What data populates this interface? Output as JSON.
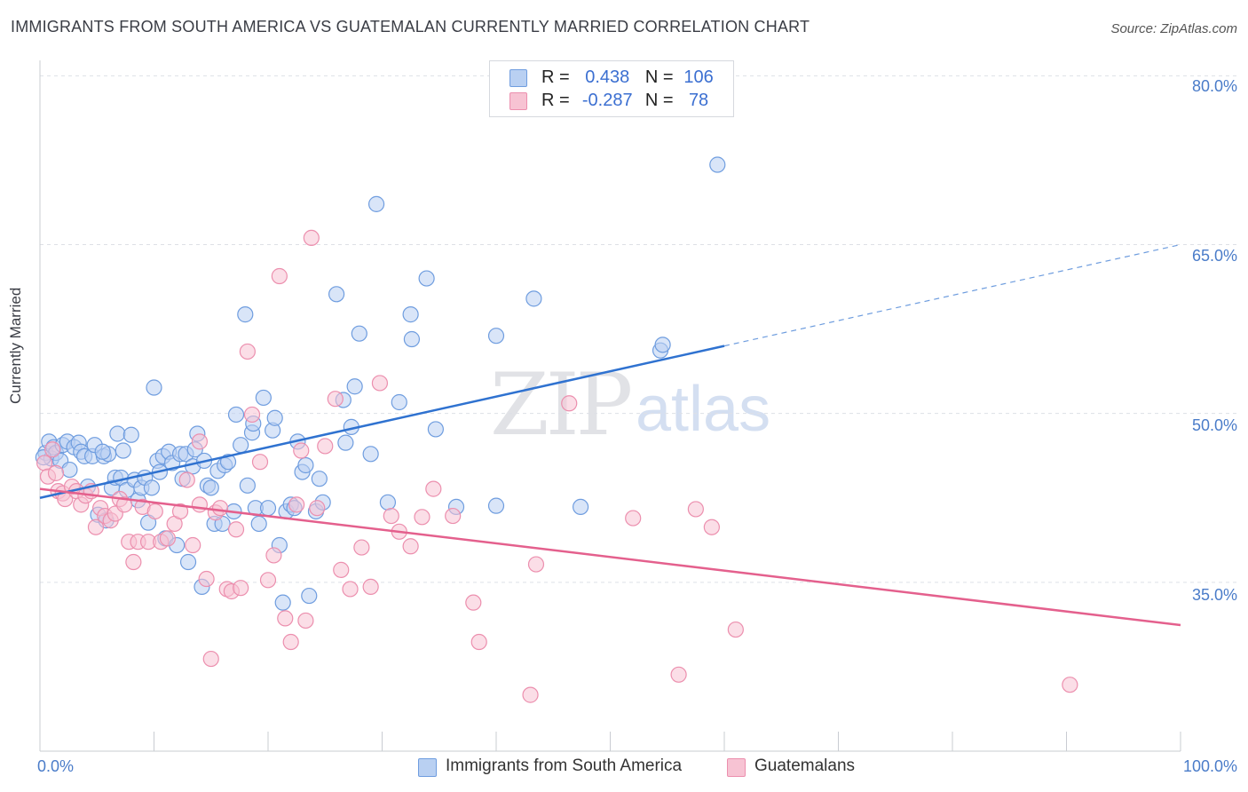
{
  "header": {
    "title": "IMMIGRANTS FROM SOUTH AMERICA VS GUATEMALAN CURRENTLY MARRIED CORRELATION CHART",
    "source": "Source: ZipAtlas.com"
  },
  "watermark": {
    "zip": "ZIP",
    "atlas": "atlas"
  },
  "legend_top": {
    "rows": [
      {
        "r_label": "R =",
        "r_value": "0.438",
        "n_label": "N =",
        "n_value": "106"
      },
      {
        "r_label": "R =",
        "r_value": "-0.287",
        "n_label": "N =",
        "n_value": "78"
      }
    ]
  },
  "legend_bottom": {
    "items": [
      {
        "label": "Immigrants from South America"
      },
      {
        "label": "Guatemalans"
      }
    ]
  },
  "colors": {
    "blue_fill": "#b9d0f2",
    "blue_stroke": "#6f9ddf",
    "blue_line": "#2f72d0",
    "pink_fill": "#f7c3d3",
    "pink_stroke": "#ec8fae",
    "pink_line": "#e4608d",
    "grid": "#dde0e6",
    "tick_label": "#4a7cc9"
  },
  "chart_data": {
    "type": "scatter",
    "title": "IMMIGRANTS FROM SOUTH AMERICA VS GUATEMALAN CURRENTLY MARRIED CORRELATION CHART",
    "xlabel": "",
    "ylabel": "Currently Married",
    "xlim": [
      0,
      100
    ],
    "ylim": [
      20,
      82
    ],
    "x_tick_labels": [
      "0.0%",
      "100.0%"
    ],
    "y_ticks": [
      35,
      50,
      65,
      80
    ],
    "y_tick_labels": [
      "35.0%",
      "50.0%",
      "65.0%",
      "80.0%"
    ],
    "grid": true,
    "legend_position": "top-center",
    "series": [
      {
        "name": "Immigrants from South America",
        "R": 0.438,
        "N": 106,
        "trend": {
          "x": [
            0,
            60
          ],
          "y": [
            42.5,
            56
          ],
          "dashed_extension": {
            "x": [
              60,
              100
            ],
            "y": [
              56,
              65
            ]
          }
        },
        "points": [
          [
            0.5,
            46.5
          ],
          [
            0.8,
            47.5
          ],
          [
            1.0,
            46
          ],
          [
            1.2,
            47
          ],
          [
            1.4,
            46.5
          ],
          [
            1.8,
            45.8
          ],
          [
            2.0,
            47.2
          ],
          [
            2.4,
            47.5
          ],
          [
            2.6,
            45
          ],
          [
            3.0,
            47
          ],
          [
            3.4,
            47.4
          ],
          [
            3.6,
            46.6
          ],
          [
            3.9,
            46.2
          ],
          [
            4.2,
            43.5
          ],
          [
            4.6,
            46.2
          ],
          [
            4.8,
            47.2
          ],
          [
            5.1,
            41
          ],
          [
            5.6,
            46.2
          ],
          [
            5.8,
            40.5
          ],
          [
            6.0,
            46.4
          ],
          [
            6.3,
            43.4
          ],
          [
            6.6,
            44.3
          ],
          [
            6.8,
            48.2
          ],
          [
            7.1,
            44.3
          ],
          [
            7.3,
            46.7
          ],
          [
            7.6,
            43.2
          ],
          [
            8.0,
            48.1
          ],
          [
            8.3,
            44.1
          ],
          [
            8.6,
            42.3
          ],
          [
            8.9,
            43.4
          ],
          [
            9.2,
            44.3
          ],
          [
            9.5,
            40.3
          ],
          [
            9.8,
            43.4
          ],
          [
            10.0,
            52.3
          ],
          [
            10.3,
            45.8
          ],
          [
            10.5,
            44.8
          ],
          [
            10.8,
            46.2
          ],
          [
            11.0,
            38.9
          ],
          [
            11.3,
            46.6
          ],
          [
            11.6,
            45.6
          ],
          [
            12.0,
            38.3
          ],
          [
            12.3,
            46.4
          ],
          [
            12.5,
            44.2
          ],
          [
            12.8,
            46.4
          ],
          [
            13.0,
            36.8
          ],
          [
            13.4,
            45.3
          ],
          [
            13.6,
            46.8
          ],
          [
            13.8,
            48.2
          ],
          [
            14.2,
            34.6
          ],
          [
            14.4,
            45.8
          ],
          [
            14.7,
            43.6
          ],
          [
            15.0,
            43.4
          ],
          [
            15.3,
            40.2
          ],
          [
            15.6,
            44.9
          ],
          [
            16.0,
            40.2
          ],
          [
            16.2,
            45.4
          ],
          [
            16.5,
            45.7
          ],
          [
            17.0,
            41.3
          ],
          [
            17.2,
            49.9
          ],
          [
            17.6,
            47.2
          ],
          [
            18.0,
            58.8
          ],
          [
            18.2,
            43.6
          ],
          [
            18.6,
            48.3
          ],
          [
            18.9,
            41.6
          ],
          [
            19.2,
            40.2
          ],
          [
            19.6,
            51.4
          ],
          [
            20.0,
            41.6
          ],
          [
            20.4,
            48.5
          ],
          [
            20.6,
            49.6
          ],
          [
            21.0,
            38.3
          ],
          [
            21.3,
            33.2
          ],
          [
            21.6,
            41.3
          ],
          [
            22.0,
            41.9
          ],
          [
            22.3,
            41.6
          ],
          [
            22.6,
            47.5
          ],
          [
            23.0,
            44.8
          ],
          [
            23.3,
            45.4
          ],
          [
            23.6,
            33.8
          ],
          [
            24.2,
            41.3
          ],
          [
            24.5,
            44.2
          ],
          [
            24.8,
            42.1
          ],
          [
            26.0,
            60.6
          ],
          [
            26.6,
            51.2
          ],
          [
            26.8,
            47.4
          ],
          [
            27.3,
            48.8
          ],
          [
            27.6,
            52.4
          ],
          [
            28.0,
            57.1
          ],
          [
            29.0,
            46.4
          ],
          [
            29.5,
            68.6
          ],
          [
            31.5,
            51
          ],
          [
            32.5,
            58.8
          ],
          [
            32.6,
            56.6
          ],
          [
            33.9,
            62
          ],
          [
            34.7,
            48.6
          ],
          [
            36.5,
            41.7
          ],
          [
            40.0,
            56.9
          ],
          [
            40.0,
            41.8
          ],
          [
            43.3,
            60.2
          ],
          [
            47.4,
            41.7
          ],
          [
            54.4,
            55.6
          ],
          [
            54.6,
            56.1
          ],
          [
            59.4,
            72.1
          ],
          [
            0.3,
            46.1
          ],
          [
            5.5,
            46.6
          ],
          [
            18.7,
            49.1
          ],
          [
            30.5,
            42.1
          ]
        ]
      },
      {
        "name": "Guatemalans",
        "R": -0.287,
        "N": 78,
        "trend": {
          "x": [
            0,
            100
          ],
          "y": [
            43.3,
            31.2
          ]
        },
        "points": [
          [
            0.4,
            45.6
          ],
          [
            0.7,
            44.4
          ],
          [
            1.1,
            46.8
          ],
          [
            1.4,
            44.7
          ],
          [
            1.6,
            43.1
          ],
          [
            2.0,
            42.9
          ],
          [
            2.2,
            42.4
          ],
          [
            2.8,
            43.5
          ],
          [
            3.2,
            43.1
          ],
          [
            3.6,
            41.9
          ],
          [
            4.0,
            42.7
          ],
          [
            4.5,
            43.1
          ],
          [
            4.9,
            39.9
          ],
          [
            5.3,
            41.6
          ],
          [
            5.7,
            40.9
          ],
          [
            6.2,
            40.5
          ],
          [
            6.6,
            41.1
          ],
          [
            7.0,
            42.4
          ],
          [
            7.4,
            41.9
          ],
          [
            7.8,
            38.6
          ],
          [
            8.2,
            36.8
          ],
          [
            8.6,
            38.6
          ],
          [
            9.0,
            41.7
          ],
          [
            9.5,
            38.6
          ],
          [
            10.1,
            41.3
          ],
          [
            10.6,
            38.6
          ],
          [
            11.2,
            38.9
          ],
          [
            11.8,
            40.2
          ],
          [
            12.3,
            41.3
          ],
          [
            12.9,
            44.1
          ],
          [
            13.4,
            38.3
          ],
          [
            14.0,
            41.9
          ],
          [
            14.6,
            35.3
          ],
          [
            15.0,
            28.2
          ],
          [
            15.4,
            41.2
          ],
          [
            15.8,
            41.6
          ],
          [
            16.4,
            34.4
          ],
          [
            16.8,
            34.2
          ],
          [
            17.2,
            39.7
          ],
          [
            17.6,
            34.5
          ],
          [
            18.2,
            55.5
          ],
          [
            18.6,
            49.9
          ],
          [
            19.3,
            45.7
          ],
          [
            20.0,
            35.2
          ],
          [
            20.5,
            37.4
          ],
          [
            21.0,
            62.2
          ],
          [
            21.5,
            31.8
          ],
          [
            22.0,
            29.7
          ],
          [
            22.5,
            41.9
          ],
          [
            23.3,
            31.6
          ],
          [
            23.8,
            65.6
          ],
          [
            24.3,
            41.6
          ],
          [
            25.0,
            47.1
          ],
          [
            25.9,
            51.3
          ],
          [
            26.4,
            36.1
          ],
          [
            27.2,
            34.4
          ],
          [
            28.2,
            38.1
          ],
          [
            29.0,
            34.6
          ],
          [
            29.8,
            52.7
          ],
          [
            30.8,
            40.9
          ],
          [
            31.5,
            39.5
          ],
          [
            32.5,
            38.2
          ],
          [
            33.5,
            40.8
          ],
          [
            34.5,
            43.3
          ],
          [
            36.2,
            40.9
          ],
          [
            38.0,
            33.2
          ],
          [
            38.5,
            29.7
          ],
          [
            43.0,
            25
          ],
          [
            43.5,
            36.6
          ],
          [
            46.4,
            50.9
          ],
          [
            52.0,
            40.7
          ],
          [
            56.0,
            26.8
          ],
          [
            57.5,
            41.5
          ],
          [
            58.9,
            39.9
          ],
          [
            61.0,
            30.8
          ],
          [
            90.3,
            25.9
          ],
          [
            14.0,
            47.5
          ],
          [
            22.9,
            46.7
          ]
        ]
      }
    ]
  }
}
